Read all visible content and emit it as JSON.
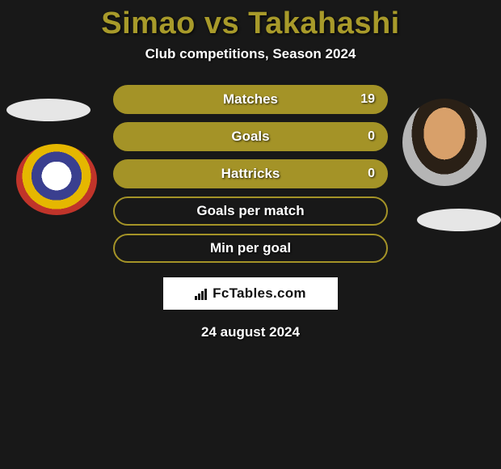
{
  "title_color": "#a89a2a",
  "title": "Simao vs Takahashi",
  "subtitle": "Club competitions, Season 2024",
  "bar_highlight_bg": "#a49327",
  "bar_border_color": "#a49327",
  "bar_border_width": 2,
  "bar_default_bg": "transparent",
  "stats": [
    {
      "label": "Matches",
      "value": "19",
      "highlight": true
    },
    {
      "label": "Goals",
      "value": "0",
      "highlight": true
    },
    {
      "label": "Hattricks",
      "value": "0",
      "highlight": true
    },
    {
      "label": "Goals per match",
      "value": "",
      "highlight": false
    },
    {
      "label": "Min per goal",
      "value": "",
      "highlight": false
    }
  ],
  "brand": "FcTables.com",
  "date": "24 august 2024"
}
